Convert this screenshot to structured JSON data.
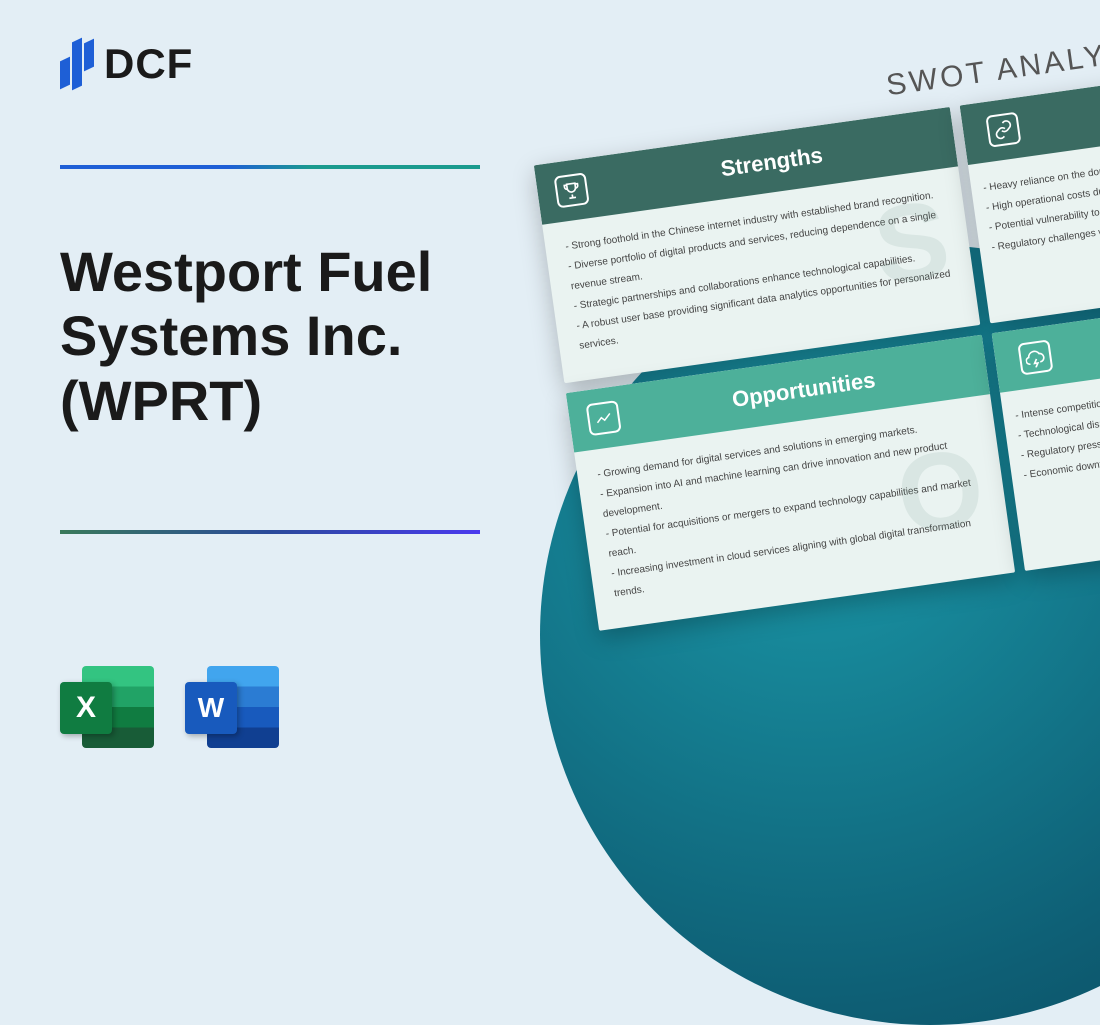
{
  "logo": {
    "text": "DCF"
  },
  "title": "Westport Fuel\nSystems Inc.\n(WPRT)",
  "icons": {
    "excel": "X",
    "word": "W"
  },
  "swot": {
    "heading": "SWOT ANALYSIS",
    "strengths": {
      "title": "Strengths",
      "watermark": "S",
      "items": [
        "- Strong foothold in the Chinese internet industry with established brand recognition.",
        "- Diverse portfolio of digital products and services, reducing dependence on a single revenue stream.",
        "- Strategic partnerships and collaborations enhance technological capabilities.",
        "- A robust user base providing significant data analytics opportunities for personalized services."
      ]
    },
    "weaknesses": {
      "items": [
        "- Heavy reliance on the domestic",
        "- High operational costs due to",
        "- Potential vulnerability to rap",
        "- Regulatory challenges withi"
      ]
    },
    "opportunities": {
      "title": "Opportunities",
      "watermark": "O",
      "items": [
        "- Growing demand for digital services and solutions in emerging markets.",
        "- Expansion into AI and machine learning can drive innovation and new product development.",
        "- Potential for acquisitions or mergers to expand technology capabilities and market reach.",
        "- Increasing investment in cloud services aligning with global digital transformation trends."
      ]
    },
    "threats": {
      "items": [
        "- Intense competition",
        "- Technological disru",
        "- Regulatory pressu",
        "- Economic downt"
      ]
    }
  },
  "colors": {
    "bg": "#e3eef5",
    "logo": "#1e5fd6",
    "strengths_header": "#3a6b62",
    "opportunities_header": "#4db09a",
    "circle_start": "#1b9aaa",
    "circle_end": "#0a4a5e"
  }
}
